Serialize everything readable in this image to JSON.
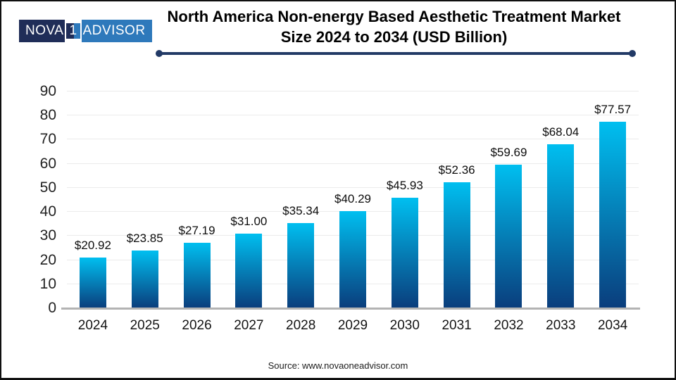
{
  "header": {
    "title_line1": "North America Non-energy Based Aesthetic Treatment Market",
    "title_line2": "Size 2024 to 2034 (USD Billion)"
  },
  "logo": {
    "part_nova": "NOVA",
    "part_one": "1",
    "part_advisor": "ADVISOR"
  },
  "footer": {
    "source": "Source: www.novaoneadvisor.com"
  },
  "colors": {
    "logo_navy": "#1f2d58",
    "logo_blue": "#2e79bb",
    "divider_navy": "#223a66",
    "gridline": "#ebebeb",
    "baseline": "#b3b3b3",
    "bar_gradient_top": "#00bff0",
    "bar_gradient_bottom": "#0a3d7c"
  },
  "chart_data": {
    "type": "bar",
    "title": "North America Non-energy Based Aesthetic Treatment Market Size 2024 to 2034 (USD Billion)",
    "categories": [
      "2024",
      "2025",
      "2026",
      "2027",
      "2028",
      "2029",
      "2030",
      "2031",
      "2032",
      "2033",
      "2034"
    ],
    "values": [
      20.92,
      23.85,
      27.19,
      31.0,
      35.34,
      40.29,
      45.93,
      52.36,
      59.69,
      68.04,
      77.57
    ],
    "value_labels": [
      "$20.92",
      "$23.85",
      "$27.19",
      "$31.00",
      "$35.34",
      "$40.29",
      "$45.93",
      "$52.36",
      "$59.69",
      "$68.04",
      "$77.57"
    ],
    "xlabel": "",
    "ylabel": "",
    "ylim": [
      0,
      90
    ],
    "ytick_step": 10,
    "yticks": [
      0,
      10,
      20,
      30,
      40,
      50,
      60,
      70,
      80,
      90
    ],
    "grid": true,
    "legend": "none",
    "units": "USD Billion"
  }
}
